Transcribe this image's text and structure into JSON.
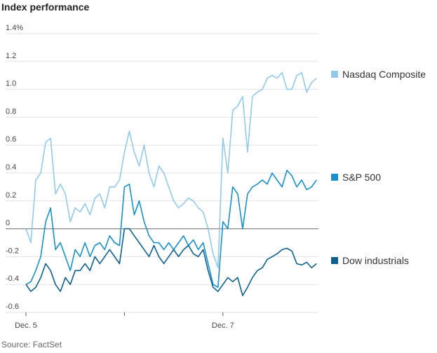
{
  "chart_data": {
    "type": "line",
    "title": "Index performance",
    "source": "Source: FactSet",
    "x": [
      0,
      0.05,
      0.1,
      0.15,
      0.2,
      0.25,
      0.3,
      0.35,
      0.4,
      0.45,
      0.5,
      0.55,
      0.6,
      0.65,
      0.7,
      0.75,
      0.8,
      0.85,
      0.9,
      0.95,
      1.0,
      1.05,
      1.1,
      1.15,
      1.2,
      1.25,
      1.3,
      1.35,
      1.4,
      1.45,
      1.5,
      1.55,
      1.6,
      1.65,
      1.7,
      1.75,
      1.8,
      1.85,
      1.9,
      1.95,
      2.0,
      2.05,
      2.1,
      2.15,
      2.2,
      2.25,
      2.3,
      2.35,
      2.4,
      2.45,
      2.5,
      2.55,
      2.6,
      2.65,
      2.7,
      2.75,
      2.8,
      2.85,
      2.9,
      2.95
    ],
    "series": [
      {
        "name": "Nasdaq Composite",
        "color": "#93c9ea",
        "values": [
          0,
          -0.1,
          0.35,
          0.4,
          0.62,
          0.65,
          0.25,
          0.32,
          0.25,
          0.05,
          0.15,
          0.12,
          0.18,
          0.1,
          0.22,
          0.25,
          0.15,
          0.3,
          0.3,
          0.35,
          0.55,
          0.7,
          0.55,
          0.45,
          0.6,
          0.4,
          0.3,
          0.45,
          0.4,
          0.3,
          0.2,
          0.15,
          0.18,
          0.22,
          0.2,
          0.15,
          0.12,
          0.0,
          -0.18,
          -0.28,
          0.65,
          0.4,
          0.85,
          0.88,
          0.95,
          0.55,
          0.95,
          0.98,
          1.0,
          1.08,
          1.1,
          1.08,
          1.12,
          1.0,
          1.0,
          1.1,
          1.12,
          0.98,
          1.05,
          1.08
        ]
      },
      {
        "name": "S&P 500",
        "color": "#1a8fc9",
        "values": [
          -0.4,
          -0.38,
          -0.3,
          -0.2,
          0.05,
          0.15,
          -0.15,
          -0.1,
          -0.2,
          -0.3,
          -0.15,
          -0.2,
          -0.1,
          -0.2,
          -0.12,
          -0.1,
          -0.15,
          -0.05,
          -0.1,
          -0.12,
          0.3,
          0.32,
          0.1,
          0.2,
          0.05,
          -0.05,
          -0.1,
          -0.1,
          -0.15,
          -0.1,
          -0.15,
          -0.1,
          -0.05,
          -0.12,
          -0.08,
          -0.15,
          -0.1,
          -0.25,
          -0.4,
          -0.42,
          0.05,
          0.0,
          0.3,
          0.25,
          0.0,
          0.25,
          0.3,
          0.32,
          0.35,
          0.32,
          0.4,
          0.35,
          0.3,
          0.42,
          0.38,
          0.3,
          0.35,
          0.28,
          0.3,
          0.35
        ]
      },
      {
        "name": "Dow industrials",
        "color": "#0e5f8f",
        "values": [
          -0.4,
          -0.45,
          -0.42,
          -0.35,
          -0.25,
          -0.3,
          -0.4,
          -0.45,
          -0.35,
          -0.4,
          -0.3,
          -0.3,
          -0.25,
          -0.3,
          -0.2,
          -0.25,
          -0.2,
          -0.15,
          -0.2,
          -0.25,
          0.0,
          0.0,
          -0.05,
          -0.1,
          -0.15,
          -0.2,
          -0.12,
          -0.2,
          -0.25,
          -0.2,
          -0.15,
          -0.2,
          -0.15,
          -0.12,
          -0.18,
          -0.2,
          -0.15,
          -0.3,
          -0.42,
          -0.45,
          -0.4,
          -0.35,
          -0.38,
          -0.35,
          -0.48,
          -0.42,
          -0.35,
          -0.3,
          -0.28,
          -0.22,
          -0.2,
          -0.18,
          -0.15,
          -0.14,
          -0.16,
          -0.25,
          -0.26,
          -0.24,
          -0.28,
          -0.25
        ]
      }
    ],
    "xlim": [
      0,
      2.97
    ],
    "xticks": [
      {
        "value": 0,
        "label": "Dec. 5"
      },
      {
        "value": 1,
        "label": null
      },
      {
        "value": 2,
        "label": "Dec. 7"
      }
    ],
    "ylim": [
      -0.6,
      1.4
    ],
    "yticks": [
      {
        "value": 1.4,
        "label": "1.4%"
      },
      1.2,
      {
        "value": 1.0,
        "label": "1.0"
      },
      0.8,
      0.6,
      0.4,
      0.2,
      0,
      -0.2,
      -0.4,
      -0.6
    ],
    "grid": true,
    "legend": "right"
  }
}
